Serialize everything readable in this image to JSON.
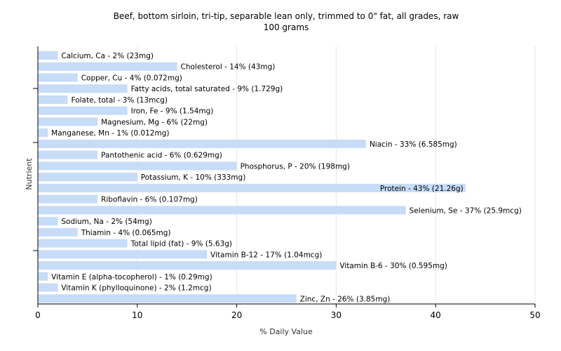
{
  "chart_data": {
    "type": "bar",
    "orientation": "horizontal",
    "title": "Beef, bottom sirloin, tri-tip, separable lean only, trimmed to 0\" fat, all grades, raw",
    "subtitle": "100 grams",
    "xlabel": "% Daily Value",
    "ylabel": "Nutrient",
    "xlim": [
      0,
      50
    ],
    "xticks": [
      0,
      10,
      20,
      30,
      40,
      50
    ],
    "grid": true,
    "bar_color": "#c6dcf7",
    "categories": [
      "Calcium, Ca",
      "Cholesterol",
      "Copper, Cu",
      "Fatty acids, total saturated",
      "Folate, total",
      "Iron, Fe",
      "Magnesium, Mg",
      "Manganese, Mn",
      "Niacin",
      "Pantothenic acid",
      "Phosphorus, P",
      "Potassium, K",
      "Protein",
      "Riboflavin",
      "Selenium, Se",
      "Sodium, Na",
      "Thiamin",
      "Total lipid (fat)",
      "Vitamin B-12",
      "Vitamin B-6",
      "Vitamin E (alpha-tocopherol)",
      "Vitamin K (phylloquinone)",
      "Zinc, Zn"
    ],
    "values": [
      2,
      14,
      4,
      9,
      3,
      9,
      6,
      1,
      33,
      6,
      20,
      10,
      43,
      6,
      37,
      2,
      4,
      9,
      17,
      30,
      1,
      2,
      26
    ],
    "labels": [
      "Calcium, Ca - 2% (23mg)",
      "Cholesterol - 14% (43mg)",
      "Copper, Cu - 4% (0.072mg)",
      "Fatty acids, total saturated - 9% (1.729g)",
      "Folate, total - 3% (13mcg)",
      "Iron, Fe - 9% (1.54mg)",
      "Magnesium, Mg - 6% (22mg)",
      "Manganese, Mn - 1% (0.012mg)",
      "Niacin - 33% (6.585mg)",
      "Pantothenic acid - 6% (0.629mg)",
      "Phosphorus, P - 20% (198mg)",
      "Potassium, K - 10% (333mg)",
      "Protein - 43% (21.26g)",
      "Riboflavin - 6% (0.107mg)",
      "Selenium, Se - 37% (25.9mcg)",
      "Sodium, Na - 2% (54mg)",
      "Thiamin - 4% (0.065mg)",
      "Total lipid (fat) - 9% (5.63g)",
      "Vitamin B-12 - 17% (1.04mcg)",
      "Vitamin B-6 - 30% (0.595mg)",
      "Vitamin E (alpha-tocopherol) - 1% (0.29mg)",
      "Vitamin K (phylloquinone) - 2% (1.2mcg)",
      "Zinc, Zn - 26% (3.85mg)"
    ]
  }
}
